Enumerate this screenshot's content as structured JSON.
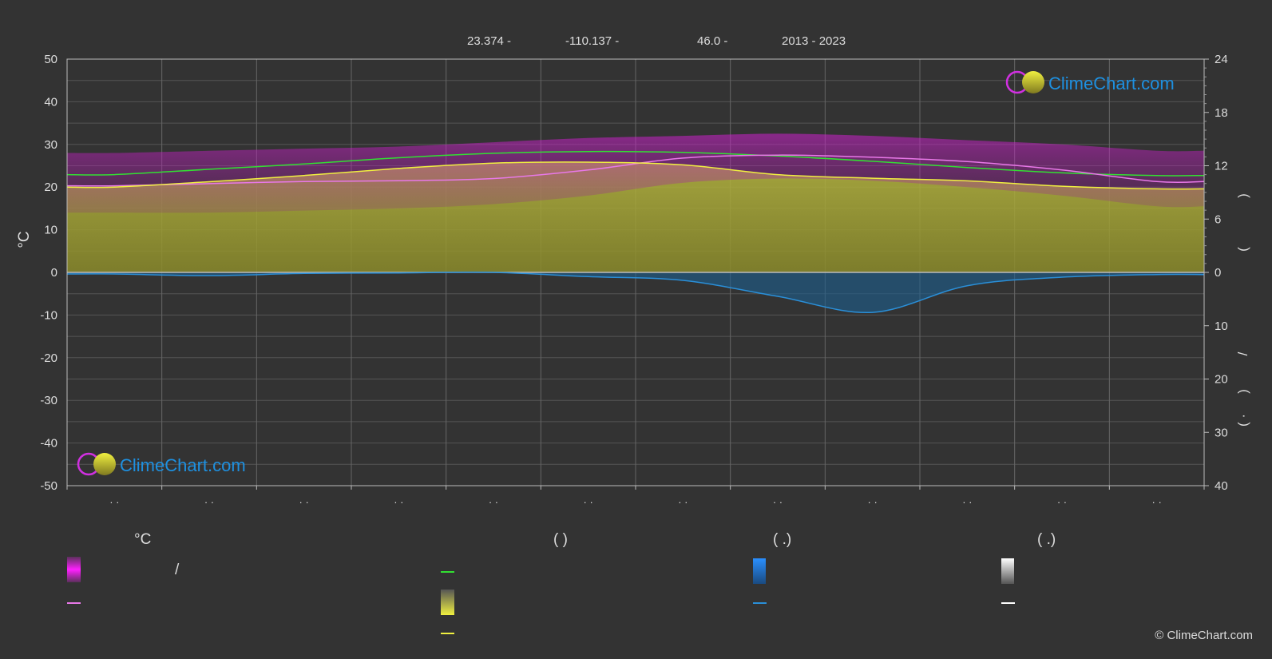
{
  "header": {
    "lat": "23.374 -",
    "lon": "-110.137 -",
    "elev": "46.0 -",
    "years": "2013 - 2023"
  },
  "logo": {
    "text": "ClimeChart.com"
  },
  "copyright": "© ClimeChart.com",
  "colors": {
    "background": "#333333",
    "daylight": "#32e032",
    "sunshine": "#f0f040",
    "max_temp": "#e878e8",
    "precip": "#2a8fd8",
    "temp_band": "#d020d0",
    "sun_fill": "#b8b840",
    "brand": "#1e90e0"
  },
  "chart_data": {
    "type": "area",
    "months": 12,
    "month_tick_labels": [
      "· ·",
      "· ·",
      "· ·",
      "· ·",
      "· ·",
      "· ·",
      "· ·",
      "· ·",
      "· ·",
      "· ·",
      "· ·",
      "· ·"
    ],
    "left_axis": {
      "label": "°C",
      "ylim": [
        -50,
        50
      ],
      "ticks": [
        50,
        40,
        30,
        20,
        10,
        0,
        -10,
        -20,
        -30,
        -40,
        -50
      ]
    },
    "right_axis_top": {
      "ylim": [
        0,
        24
      ],
      "ticks": [
        24,
        18,
        12,
        6,
        0
      ],
      "label_fragments": [
        ")",
        "("
      ]
    },
    "right_axis_bottom": {
      "ylim": [
        0,
        40
      ],
      "ticks": [
        0,
        10,
        20,
        30,
        40
      ],
      "label_fragments": [
        "/",
        ")",
        "( ·"
      ]
    },
    "series": [
      {
        "key": "daylight",
        "values": [
          11.0,
          11.6,
          12.2,
          12.9,
          13.4,
          13.6,
          13.5,
          13.1,
          12.5,
          11.8,
          11.2,
          10.9
        ]
      },
      {
        "key": "sunshine",
        "values": [
          9.6,
          10.2,
          10.9,
          11.7,
          12.3,
          12.4,
          12.1,
          11.0,
          10.6,
          10.3,
          9.7,
          9.4
        ]
      },
      {
        "key": "max_temp",
        "values": [
          20.3,
          20.8,
          21.3,
          21.5,
          22.0,
          24.0,
          26.8,
          27.5,
          27.0,
          26.0,
          24.0,
          21.3
        ]
      },
      {
        "key": "temp_band_high",
        "values": [
          28.0,
          28.5,
          29.0,
          29.5,
          30.5,
          31.5,
          32.0,
          32.5,
          32.0,
          31.0,
          30.0,
          28.5
        ]
      },
      {
        "key": "temp_band_low",
        "values": [
          14.0,
          14.0,
          14.5,
          15.0,
          16.0,
          18.0,
          21.0,
          22.0,
          21.5,
          20.0,
          18.0,
          15.5
        ]
      },
      {
        "key": "precip_mm",
        "values": [
          0.3,
          0.6,
          0.2,
          0.1,
          0.0,
          0.8,
          1.5,
          4.5,
          7.5,
          2.5,
          0.9,
          0.4
        ]
      }
    ]
  },
  "legend": {
    "col1": {
      "title": "°C",
      "band_label": "/"
    },
    "col2": {
      "title": "(            )"
    },
    "col3": {
      "title": "(    .)"
    },
    "col4": {
      "title": "(    .)"
    }
  }
}
